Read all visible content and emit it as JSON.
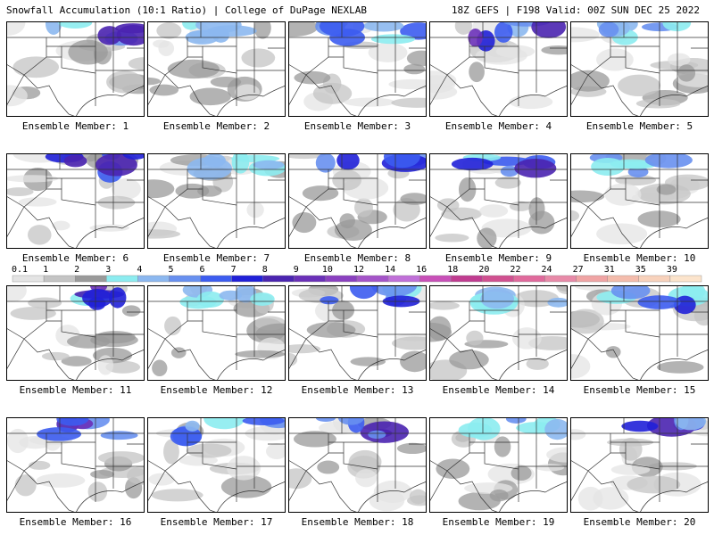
{
  "header": {
    "title": "Snowfall Accumulation (10:1 Ratio) | College of DuPage NEXLAB",
    "run": "18Z GEFS | F198 Valid: 00Z SUN DEC 25 2022"
  },
  "panels": [
    {
      "label": "Ensemble Member: 1"
    },
    {
      "label": "Ensemble Member: 2"
    },
    {
      "label": "Ensemble Member: 3"
    },
    {
      "label": "Ensemble Member: 4"
    },
    {
      "label": "Ensemble Member: 5"
    },
    {
      "label": "Ensemble Member: 6"
    },
    {
      "label": "Ensemble Member: 7"
    },
    {
      "label": "Ensemble Member: 8"
    },
    {
      "label": "Ensemble Member: 9"
    },
    {
      "label": "Ensemble Member: 10"
    },
    {
      "label": "Ensemble Member: 11"
    },
    {
      "label": "Ensemble Member: 12"
    },
    {
      "label": "Ensemble Member: 13"
    },
    {
      "label": "Ensemble Member: 14"
    },
    {
      "label": "Ensemble Member: 15"
    },
    {
      "label": "Ensemble Member: 16"
    },
    {
      "label": "Ensemble Member: 17"
    },
    {
      "label": "Ensemble Member: 18"
    },
    {
      "label": "Ensemble Member: 19"
    },
    {
      "label": "Ensemble Member: 20"
    }
  ],
  "colorbar": {
    "labels": [
      0.1,
      1,
      2,
      3,
      4,
      5,
      6,
      7,
      8,
      9,
      10,
      12,
      14,
      16,
      18,
      20,
      22,
      24,
      27,
      31,
      35,
      39
    ],
    "colors": [
      "#e4e4e4",
      "#c4c4c4",
      "#9a9a9a",
      "#8cecf0",
      "#8cb8f0",
      "#6890f0",
      "#3c5cf0",
      "#2020d8",
      "#4a24b0",
      "#6a30b8",
      "#8a40c0",
      "#a454c8",
      "#c070d8",
      "#c850b8",
      "#c03c90",
      "#d05090",
      "#e06a9c",
      "#e88aa8",
      "#f0a4a4",
      "#f4bcac",
      "#f8d2bc",
      "#fce4cc"
    ]
  }
}
